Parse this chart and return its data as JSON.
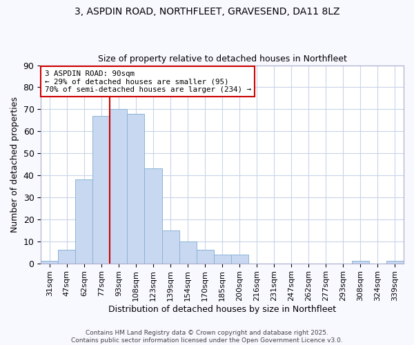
{
  "title1": "3, ASPDIN ROAD, NORTHFLEET, GRAVESEND, DA11 8LZ",
  "title2": "Size of property relative to detached houses in Northfleet",
  "xlabel": "Distribution of detached houses by size in Northfleet",
  "ylabel": "Number of detached properties",
  "categories": [
    "31sqm",
    "47sqm",
    "62sqm",
    "77sqm",
    "93sqm",
    "108sqm",
    "123sqm",
    "139sqm",
    "154sqm",
    "170sqm",
    "185sqm",
    "200sqm",
    "216sqm",
    "231sqm",
    "247sqm",
    "262sqm",
    "277sqm",
    "293sqm",
    "308sqm",
    "324sqm",
    "339sqm"
  ],
  "values": [
    1,
    6,
    38,
    67,
    70,
    68,
    43,
    15,
    10,
    6,
    4,
    4,
    0,
    0,
    0,
    0,
    0,
    0,
    1,
    0,
    1
  ],
  "bar_color": "#c8d8f0",
  "bar_edgecolor": "#8ab4d8",
  "vline_x_index": 4,
  "vline_color": "#cc0000",
  "annotation_text": "3 ASPDIN ROAD: 90sqm\n← 29% of detached houses are smaller (95)\n70% of semi-detached houses are larger (234) →",
  "annotation_box_facecolor": "#ffffff",
  "annotation_box_edgecolor": "#cc0000",
  "ylim": [
    0,
    90
  ],
  "yticks": [
    0,
    10,
    20,
    30,
    40,
    50,
    60,
    70,
    80,
    90
  ],
  "footer": "Contains HM Land Registry data © Crown copyright and database right 2025.\nContains public sector information licensed under the Open Government Licence v3.0.",
  "grid_color": "#c8d4e8",
  "background_color": "#ffffff",
  "plot_bg_color": "#ffffff",
  "fig_bg_color": "#f8f8ff"
}
